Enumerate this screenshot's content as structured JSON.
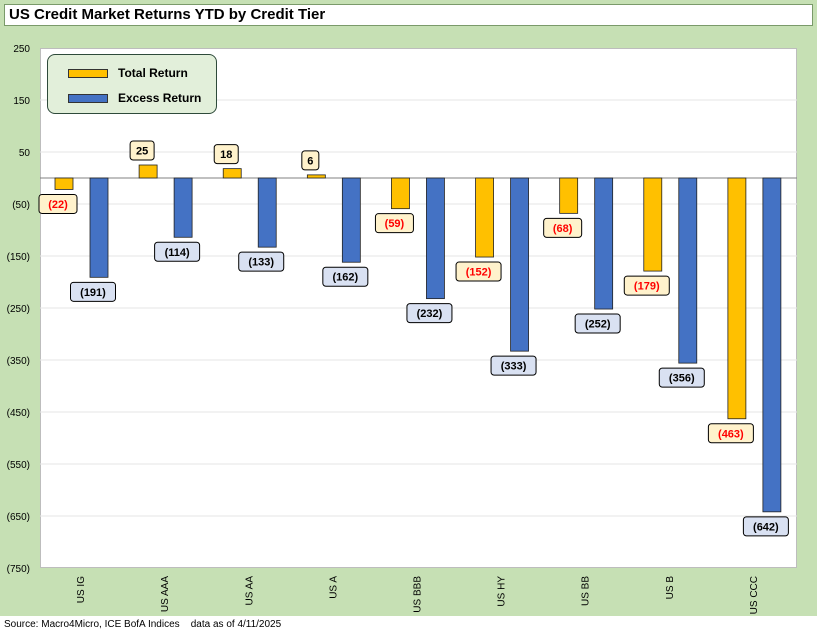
{
  "chart_data": {
    "type": "bar",
    "title": "US Credit Market Returns YTD by Credit Tier",
    "categories": [
      "US IG",
      "US AAA",
      "US AA",
      "US A",
      "US BBB",
      "US HY",
      "US BB",
      "US B",
      "US CCC"
    ],
    "series": [
      {
        "name": "Total Return",
        "color": "#ffc000",
        "values": [
          -22,
          25,
          18,
          6,
          -59,
          -152,
          -68,
          -179,
          -463
        ],
        "labels": [
          "(22)",
          "25",
          "18",
          "6",
          "(59)",
          "(152)",
          "(68)",
          "(179)",
          "(463)"
        ]
      },
      {
        "name": "Excess Return",
        "color": "#4472c4",
        "values": [
          -191,
          -114,
          -133,
          -162,
          -232,
          -333,
          -252,
          -356,
          -642
        ],
        "labels": [
          "(191)",
          "(114)",
          "(133)",
          "(162)",
          "(232)",
          "(333)",
          "(252)",
          "(356)",
          "(642)"
        ]
      }
    ],
    "yticks": [
      250,
      150,
      50,
      -50,
      -150,
      -250,
      -350,
      -450,
      -550,
      -650,
      -750
    ],
    "ytick_labels": [
      "250",
      "150",
      "50",
      "(50)",
      "(150)",
      "(250)",
      "(350)",
      "(450)",
      "(550)",
      "(650)",
      "(750)"
    ],
    "ylim": [
      -750,
      250
    ],
    "grid": true,
    "legend_position": "top-left"
  },
  "source": "Source: Macro4Micro, ICE BofA Indices    data as of 4/11/2025",
  "colors": {
    "frame": "#c6e0b4",
    "total_label_bg": "#fff2cc",
    "total_label_negative_text": "#ff0000",
    "excess_label_bg": "#d9e1f2"
  }
}
